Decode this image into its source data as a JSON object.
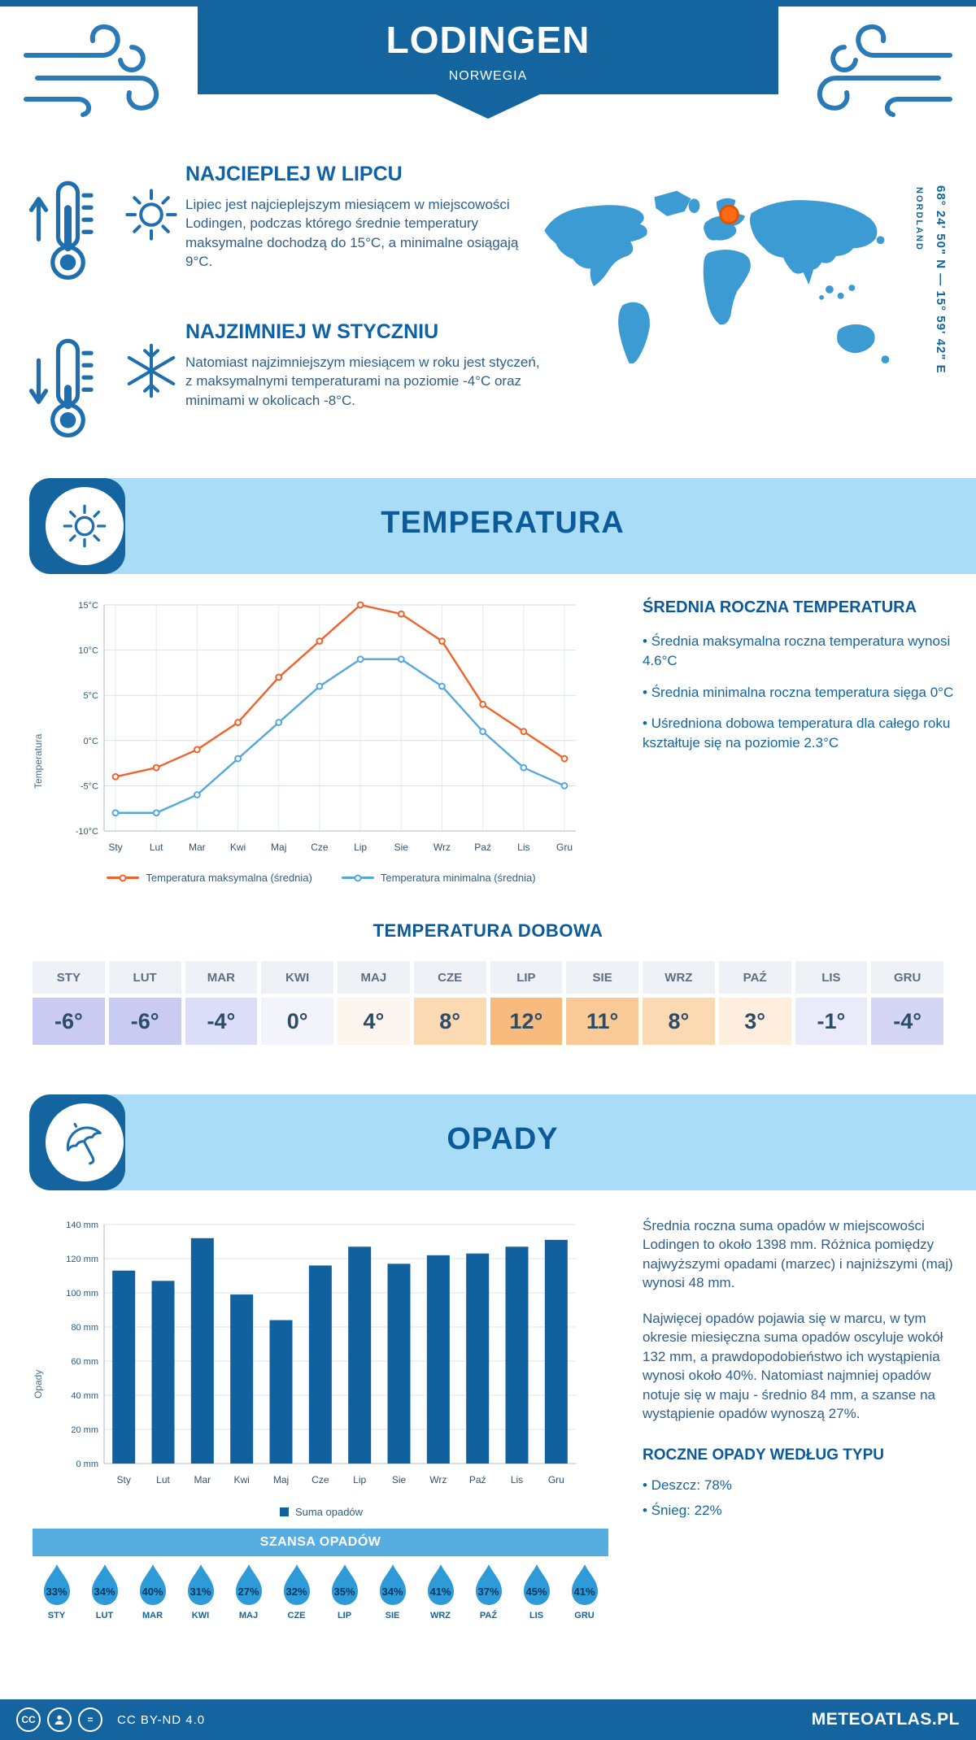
{
  "colors": {
    "accent": "#14659f",
    "band_bg": "#a9dcf7",
    "chance_band_bg": "#56ade0",
    "max_line": "#f2612b",
    "min_line": "#56a8dc",
    "bar": "#11619f",
    "marker": "#ff6a13",
    "map_land": "#3d9bd4"
  },
  "header": {
    "title": "LODINGEN",
    "subtitle": "NORWEGIA"
  },
  "location": {
    "coordinates": "68° 24' 50\" N — 15° 59' 42\" E",
    "region": "NORDLAND"
  },
  "highlights": {
    "warmest": {
      "title": "NAJCIEPLEJ W LIPCU",
      "text": "Lipiec jest najcieplejszym miesiącem w miejscowości Lodingen, podczas którego średnie temperatury maksymalne dochodzą do 15°C, a minimalne osiągają 9°C."
    },
    "coldest": {
      "title": "NAJZIMNIEJ W STYCZNIU",
      "text": "Natomiast najzimniejszym miesiącem w roku jest styczeń, z maksymalnymi temperaturami na poziomie -4°C oraz minimami w okolicach -8°C."
    }
  },
  "temperature": {
    "section_title": "TEMPERATURA",
    "summary_title": "ŚREDNIA ROCZNA TEMPERATURA",
    "bullets": [
      "Średnia maksymalna roczna temperatura wynosi 4.6°C",
      "Średnia minimalna roczna temperatura sięga 0°C",
      "Uśredniona dobowa temperatura dla całego roku kształtuje się na poziomie 2.3°C"
    ],
    "daily_title": "TEMPERATURA DOBOWA",
    "months": [
      "STY",
      "LUT",
      "MAR",
      "KWI",
      "MAJ",
      "CZE",
      "LIP",
      "SIE",
      "WRZ",
      "PAŹ",
      "LIS",
      "GRU"
    ],
    "daily_values": [
      "-6°",
      "-6°",
      "-4°",
      "0°",
      "4°",
      "8°",
      "12°",
      "11°",
      "8°",
      "3°",
      "-1°",
      "-4°"
    ],
    "cell_colors": [
      "#c9cbf3",
      "#c9cbf3",
      "#dcddf8",
      "#f3f4fb",
      "#fdf6ee",
      "#fbd9b3",
      "#f8ba7d",
      "#f9c996",
      "#fbd9b3",
      "#fdeedd",
      "#eaebfa",
      "#d5d6f6"
    ]
  },
  "precipitation": {
    "section_title": "OPADY",
    "para1": "Średnia roczna suma opadów w miejscowości Lodingen to około 1398 mm. Różnica pomiędzy najwyższymi opadami (marzec) i najniższymi (maj) wynosi 48 mm.",
    "para2": "Najwięcej opadów pojawia się w marcu, w tym okresie miesięczna suma opadów oscyluje wokół 132 mm, a prawdopodobieństwo ich wystąpienia wynosi około 40%. Natomiast najmniej opadów notuje się w maju - średnio 84 mm, a szanse na wystąpienie opadów wynoszą 27%.",
    "chance_title": "SZANSA OPADÓW",
    "chance_months": [
      "STY",
      "LUT",
      "MAR",
      "KWI",
      "MAJ",
      "CZE",
      "LIP",
      "SIE",
      "WRZ",
      "PAŹ",
      "LIS",
      "GRU"
    ],
    "chance_values": [
      "33%",
      "34%",
      "40%",
      "31%",
      "27%",
      "32%",
      "35%",
      "34%",
      "41%",
      "37%",
      "45%",
      "41%"
    ],
    "type_title": "ROCZNE OPADY WEDŁUG TYPU",
    "type_bullets": [
      "Deszcz: 78%",
      "Śnieg: 22%"
    ]
  },
  "footer": {
    "license": "CC BY-ND 4.0",
    "brand": "METEOATLAS.PL"
  },
  "chart_data": [
    {
      "type": "line",
      "title": "Temperatura",
      "ylabel": "Temperatura",
      "categories": [
        "Sty",
        "Lut",
        "Mar",
        "Kwi",
        "Maj",
        "Cze",
        "Lip",
        "Sie",
        "Wrz",
        "Paź",
        "Lis",
        "Gru"
      ],
      "series": [
        {
          "name": "Temperatura maksymalna (średnia)",
          "color": "#f2612b",
          "values": [
            -4,
            -3,
            -1,
            2,
            7,
            11,
            15,
            14,
            11,
            4,
            1,
            -2
          ]
        },
        {
          "name": "Temperatura minimalna (średnia)",
          "color": "#56a8dc",
          "values": [
            -8,
            -8,
            -6,
            -2,
            2,
            6,
            9,
            9,
            6,
            1,
            -3,
            -5
          ]
        }
      ],
      "ylim": [
        -10,
        15
      ],
      "yticks": [
        15,
        10,
        5,
        0,
        -5,
        -10
      ],
      "ytick_suffix": "°C",
      "grid": true,
      "legend_position": "bottom"
    },
    {
      "type": "bar",
      "ylabel": "Opady",
      "categories": [
        "Sty",
        "Lut",
        "Mar",
        "Kwi",
        "Maj",
        "Cze",
        "Lip",
        "Sie",
        "Wrz",
        "Paź",
        "Lis",
        "Gru"
      ],
      "values": [
        113,
        107,
        132,
        99,
        84,
        116,
        127,
        117,
        122,
        123,
        127,
        131
      ],
      "ylim": [
        0,
        140
      ],
      "yticks": [
        0,
        20,
        40,
        60,
        80,
        100,
        120,
        140
      ],
      "ytick_suffix": " mm",
      "legend": "Suma opadów",
      "grid": true,
      "legend_position": "bottom"
    }
  ]
}
